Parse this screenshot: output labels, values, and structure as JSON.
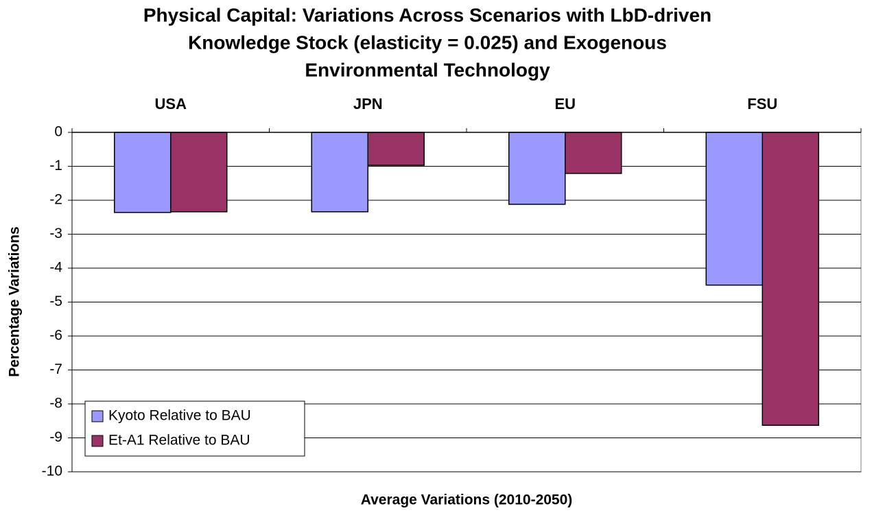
{
  "chart_data": {
    "type": "bar",
    "title": [
      "Physical Capital: Variations Across Scenarios with LbD-driven",
      "Knowledge Stock (elasticity = 0.025) and Exogenous",
      "Environmental Technology"
    ],
    "x_label": "Average Variations (2010-2050)",
    "y_label": "Percentage Variations",
    "categories": [
      "USA",
      "JPN",
      "EU",
      "FSU"
    ],
    "series": [
      {
        "name": "Kyoto Relative to BAU",
        "color": "#9999ff",
        "values": [
          -2.36,
          -2.34,
          -2.12,
          -4.5
        ]
      },
      {
        "name": "Et-A1 Relative to BAU",
        "color": "#993366",
        "values": [
          -2.34,
          -0.97,
          -1.21,
          -8.63
        ]
      }
    ],
    "ylim": [
      -10,
      0
    ],
    "yticks": [
      0,
      -1,
      -2,
      -3,
      -4,
      -5,
      -6,
      -7,
      -8,
      -9,
      -10
    ],
    "grid": true,
    "legend": "lower left"
  }
}
